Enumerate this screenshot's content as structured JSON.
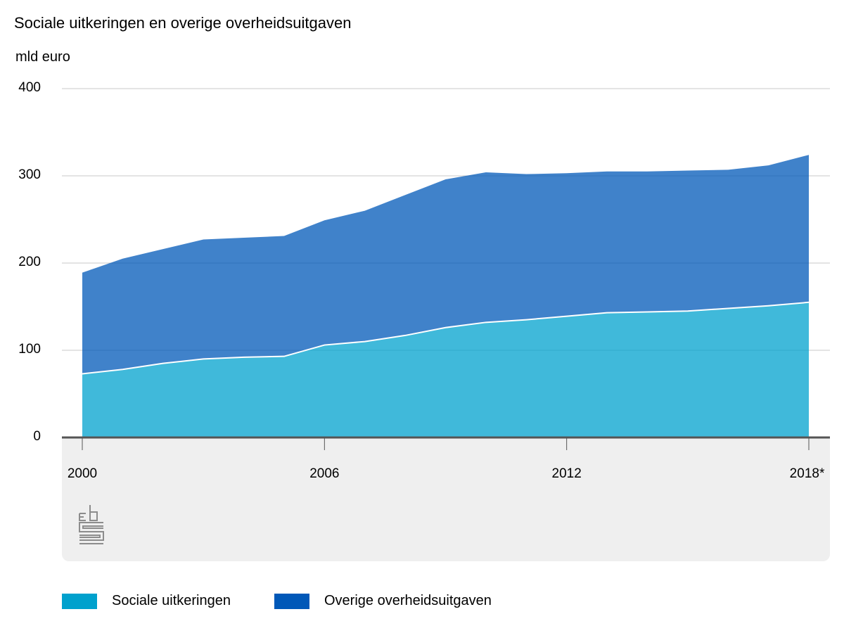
{
  "chart_data": {
    "type": "area",
    "stacked": true,
    "title": "Sociale uitkeringen en overige overheidsuitgaven",
    "ylabel": "mld euro",
    "ylim": [
      0,
      400
    ],
    "yticks": [
      "0",
      "100",
      "200",
      "300",
      "400"
    ],
    "x": [
      2000,
      2001,
      2002,
      2003,
      2004,
      2005,
      2006,
      2007,
      2008,
      2009,
      2010,
      2011,
      2012,
      2013,
      2014,
      2015,
      2016,
      2017,
      2018
    ],
    "xtick_labels": [
      {
        "x": 2000,
        "label": "2000"
      },
      {
        "x": 2006,
        "label": "2006"
      },
      {
        "x": 2012,
        "label": "2012"
      },
      {
        "x": 2018,
        "label": "2018*"
      }
    ],
    "series": [
      {
        "name": "Sociale uitkeringen",
        "color": "#00a1cd",
        "values": [
          73,
          78,
          85,
          90,
          92,
          93,
          106,
          110,
          117,
          126,
          132,
          135,
          139,
          143,
          144,
          145,
          148,
          151,
          155
        ]
      },
      {
        "name": "Overige overheidsuitgaven",
        "color": "#0058b8",
        "values": [
          116,
          127,
          131,
          137,
          137,
          138,
          143,
          150,
          161,
          170,
          172,
          167,
          164,
          162,
          161,
          161,
          159,
          161,
          169
        ]
      }
    ],
    "grid": true,
    "legend": "bottom"
  }
}
